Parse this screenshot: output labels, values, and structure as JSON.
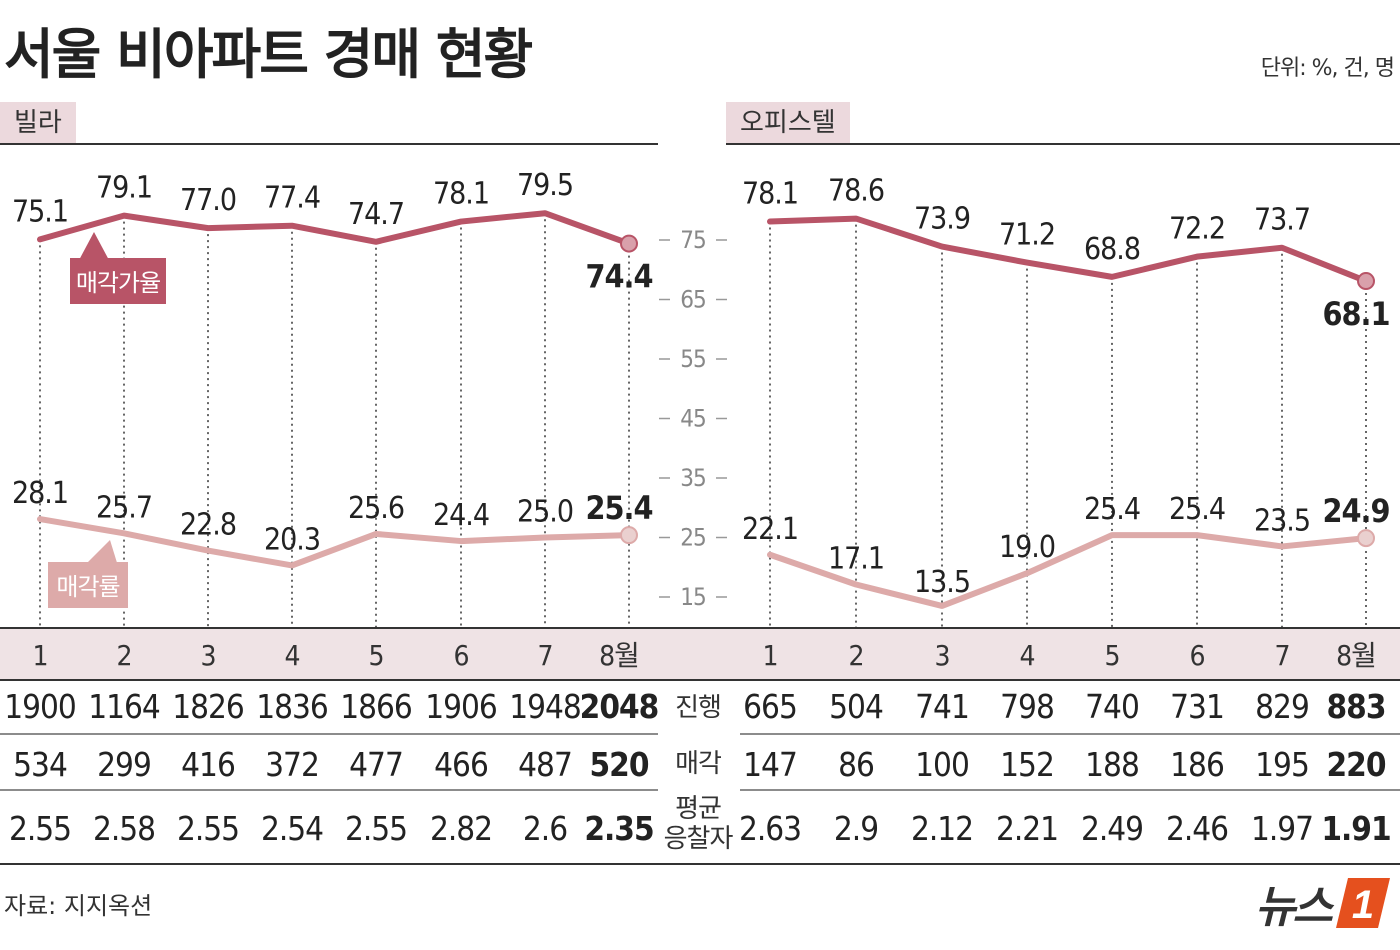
{
  "title": "서울 비아파트 경매 현황",
  "unit_label": "단위: %, 건, 명",
  "source": "자료: 지지옥션",
  "logo": {
    "text": "뉴스",
    "badge": "1",
    "brand_color": "#e5501e"
  },
  "colors": {
    "price_line": "#b85467",
    "rate_line": "#ddaaa9",
    "header_band": "#efe3e5",
    "label_bg": "#ecd9dd"
  },
  "chart_data": [
    {
      "type": "line",
      "panel": "빌라",
      "months": [
        "1",
        "2",
        "3",
        "4",
        "5",
        "6",
        "7",
        "8월"
      ],
      "series": [
        {
          "name": "매각가율",
          "values": [
            75.1,
            79.1,
            77.0,
            77.4,
            74.7,
            78.1,
            79.5,
            74.4
          ]
        },
        {
          "name": "매각률",
          "values": [
            28.1,
            25.7,
            22.8,
            20.3,
            25.6,
            24.4,
            25.0,
            25.4
          ]
        }
      ],
      "data_labels": {
        "매각가율": [
          "75.1",
          "79.1",
          "77.0",
          "77.4",
          "74.7",
          "78.1",
          "79.5",
          "74.4"
        ],
        "매각률": [
          "28.1",
          "25.7",
          "22.8",
          "20.3",
          "25.6",
          "24.4",
          "25.0",
          "25.4"
        ]
      },
      "table": {
        "진행": [
          "1900",
          "1164",
          "1826",
          "1836",
          "1866",
          "1906",
          "1948",
          "2048"
        ],
        "매각": [
          "534",
          "299",
          "416",
          "372",
          "477",
          "466",
          "487",
          "520"
        ],
        "평균응찰자": [
          "2.55",
          "2.58",
          "2.55",
          "2.54",
          "2.55",
          "2.82",
          "2.6",
          "2.35"
        ]
      }
    },
    {
      "type": "line",
      "panel": "오피스텔",
      "months": [
        "1",
        "2",
        "3",
        "4",
        "5",
        "6",
        "7",
        "8월"
      ],
      "series": [
        {
          "name": "매각가율",
          "values": [
            78.1,
            78.6,
            73.9,
            71.2,
            68.8,
            72.2,
            73.7,
            68.1
          ]
        },
        {
          "name": "매각률",
          "values": [
            22.1,
            17.1,
            13.5,
            19.0,
            25.4,
            25.4,
            23.5,
            24.9
          ]
        }
      ],
      "data_labels": {
        "매각가율": [
          "78.1",
          "78.6",
          "73.9",
          "71.2",
          "68.8",
          "72.2",
          "73.7",
          "68.1"
        ],
        "매각률": [
          "22.1",
          "17.1",
          "13.5",
          "19.0",
          "25.4",
          "25.4",
          "23.5",
          "24.9"
        ]
      },
      "table": {
        "진행": [
          "665",
          "504",
          "741",
          "798",
          "740",
          "731",
          "829",
          "883"
        ],
        "매각": [
          "147",
          "86",
          "100",
          "152",
          "188",
          "186",
          "195",
          "220"
        ],
        "평균응찰자": [
          "2.63",
          "2.9",
          "2.12",
          "2.21",
          "2.49",
          "2.46",
          "1.97",
          "1.91"
        ]
      }
    }
  ],
  "axis": {
    "ticks": [
      "75",
      "65",
      "55",
      "45",
      "35",
      "25",
      "15"
    ],
    "tick_values": [
      75,
      65,
      55,
      45,
      35,
      25,
      15
    ]
  },
  "row_labels": {
    "progress": "진행",
    "sold": "매각",
    "bidders_line1": "평균",
    "bidders_line2": "응찰자"
  }
}
